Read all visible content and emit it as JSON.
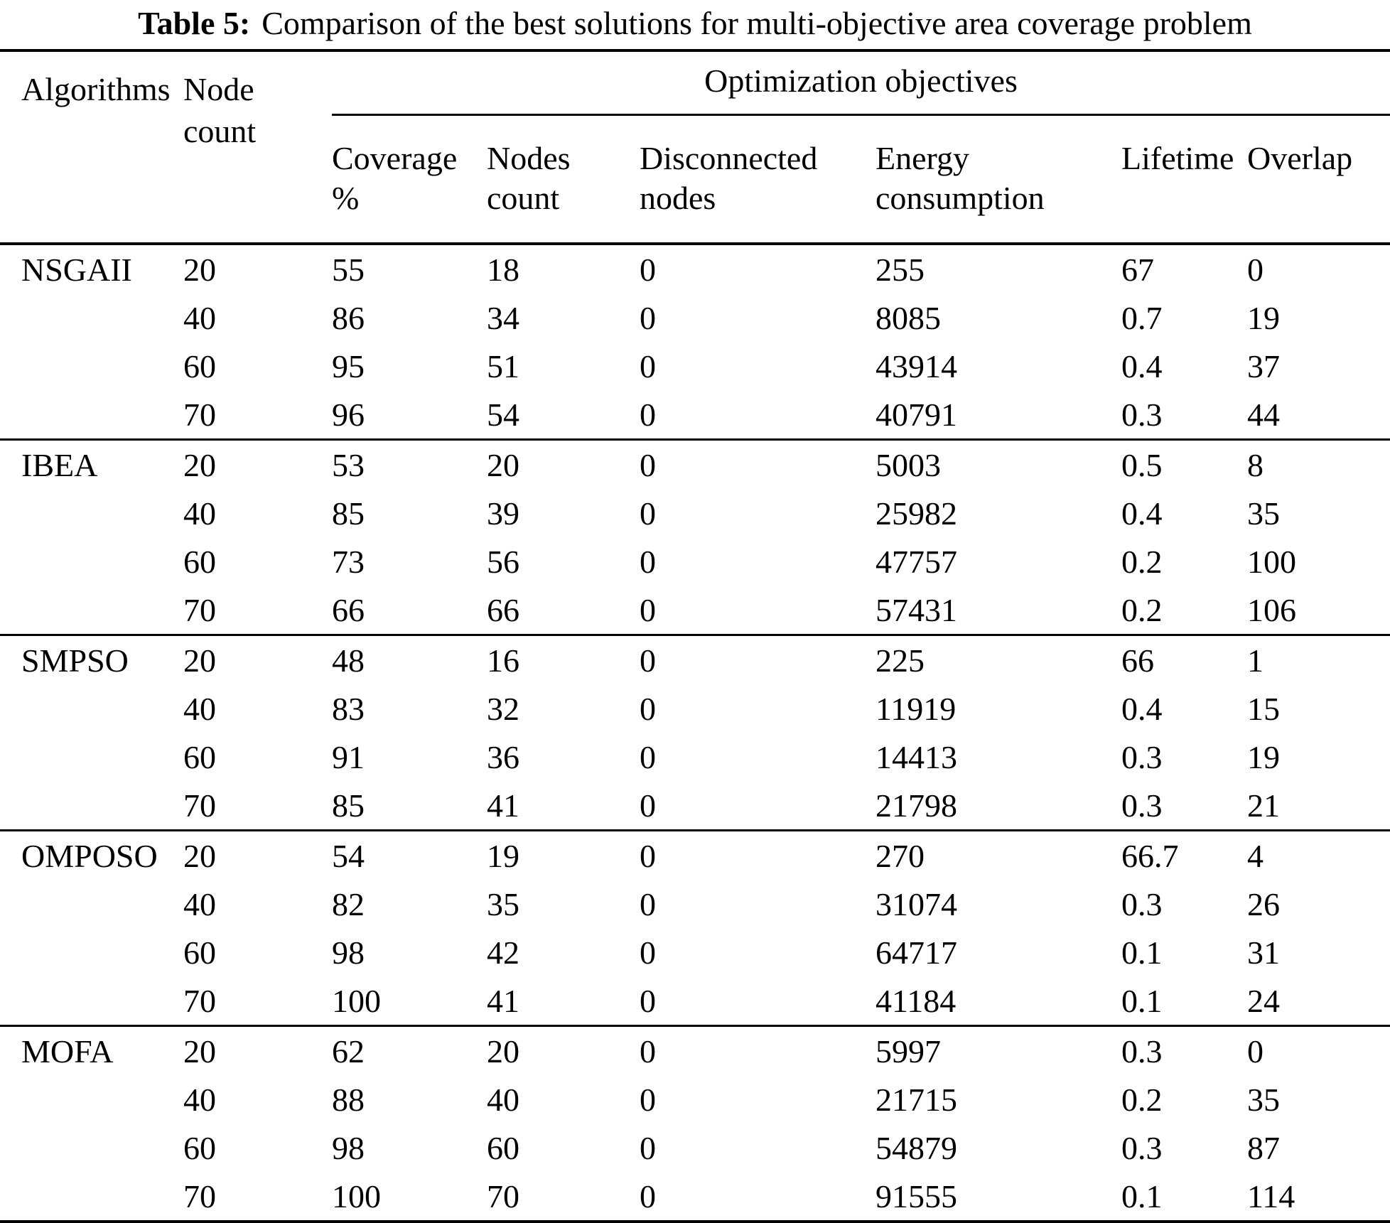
{
  "colors": {
    "text": "#000000",
    "background": "#ffffff",
    "rule": "#000000"
  },
  "caption": {
    "label": "Table 5:",
    "text": "Comparison of the best solutions for multi-objective area coverage problem"
  },
  "table": {
    "header": {
      "algorithms": "Algorithms",
      "node_count": "Node count",
      "group": "Optimization objectives",
      "objectives": [
        "Coverage %",
        "Nodes count",
        "Disconnected nodes",
        "Energy consumption",
        "Lifetime",
        "Overlap"
      ]
    },
    "groups": [
      {
        "algorithm": "NSGAII",
        "rows": [
          [
            "20",
            "55",
            "18",
            "0",
            "255",
            "67",
            "0"
          ],
          [
            "40",
            "86",
            "34",
            "0",
            "8085",
            "0.7",
            "19"
          ],
          [
            "60",
            "95",
            "51",
            "0",
            "43914",
            "0.4",
            "37"
          ],
          [
            "70",
            "96",
            "54",
            "0",
            "40791",
            "0.3",
            "44"
          ]
        ]
      },
      {
        "algorithm": "IBEA",
        "rows": [
          [
            "20",
            "53",
            "20",
            "0",
            "5003",
            "0.5",
            "8"
          ],
          [
            "40",
            "85",
            "39",
            "0",
            "25982",
            "0.4",
            "35"
          ],
          [
            "60",
            "73",
            "56",
            "0",
            "47757",
            "0.2",
            "100"
          ],
          [
            "70",
            "66",
            "66",
            "0",
            "57431",
            "0.2",
            "106"
          ]
        ]
      },
      {
        "algorithm": "SMPSO",
        "rows": [
          [
            "20",
            "48",
            "16",
            "0",
            "225",
            "66",
            "1"
          ],
          [
            "40",
            "83",
            "32",
            "0",
            "11919",
            "0.4",
            "15"
          ],
          [
            "60",
            "91",
            "36",
            "0",
            "14413",
            "0.3",
            "19"
          ],
          [
            "70",
            "85",
            "41",
            "0",
            "21798",
            "0.3",
            "21"
          ]
        ]
      },
      {
        "algorithm": "OMPOSO",
        "rows": [
          [
            "20",
            "54",
            "19",
            "0",
            "270",
            "66.7",
            "4"
          ],
          [
            "40",
            "82",
            "35",
            "0",
            "31074",
            "0.3",
            "26"
          ],
          [
            "60",
            "98",
            "42",
            "0",
            "64717",
            "0.1",
            "31"
          ],
          [
            "70",
            "100",
            "41",
            "0",
            "41184",
            "0.1",
            "24"
          ]
        ]
      },
      {
        "algorithm": "MOFA",
        "rows": [
          [
            "20",
            "62",
            "20",
            "0",
            "5997",
            "0.3",
            "0"
          ],
          [
            "40",
            "88",
            "40",
            "0",
            "21715",
            "0.2",
            "35"
          ],
          [
            "60",
            "98",
            "60",
            "0",
            "54879",
            "0.3",
            "87"
          ],
          [
            "70",
            "100",
            "70",
            "0",
            "91555",
            "0.1",
            "114"
          ]
        ]
      }
    ]
  }
}
